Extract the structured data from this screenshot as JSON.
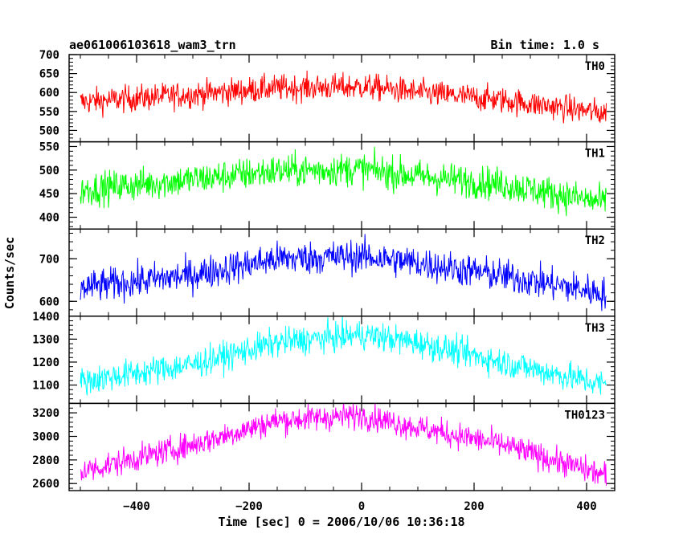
{
  "chart_data": {
    "type": "line",
    "title": "ae061006103618_wam3_trn",
    "subtitle": "Bin time: 1.0 s",
    "xlabel": "Time [sec] 0 = 2006/10/06 10:36:18",
    "ylabel": "Counts/sec",
    "xlim": [
      -520,
      450
    ],
    "xticks": [
      -400,
      -200,
      0,
      200,
      400
    ],
    "x_range": [
      -500,
      435
    ],
    "bin_time": 1.0,
    "panels": [
      {
        "name": "TH0",
        "color": "#ff0000",
        "ylim": [
          470,
          700
        ],
        "yticks": [
          500,
          550,
          600,
          650,
          700
        ],
        "trend": [
          [
            -500,
            575
          ],
          [
            -300,
            595
          ],
          [
            -150,
            612
          ],
          [
            0,
            615
          ],
          [
            30,
            612
          ],
          [
            100,
            600
          ],
          [
            250,
            580
          ],
          [
            435,
            545
          ]
        ],
        "noise": 25
      },
      {
        "name": "TH1",
        "color": "#00ff00",
        "ylim": [
          375,
          560
        ],
        "yticks": [
          400,
          450,
          500,
          550
        ],
        "trend": [
          [
            -500,
            458
          ],
          [
            -300,
            480
          ],
          [
            -150,
            498
          ],
          [
            0,
            502
          ],
          [
            100,
            487
          ],
          [
            250,
            470
          ],
          [
            435,
            430
          ]
        ],
        "noise": 25
      },
      {
        "name": "TH2",
        "color": "#0000ff",
        "ylim": [
          565,
          770
        ],
        "yticks": [
          600,
          700
        ],
        "trend": [
          [
            -500,
            632
          ],
          [
            -300,
            662
          ],
          [
            -150,
            700
          ],
          [
            0,
            706
          ],
          [
            100,
            690
          ],
          [
            250,
            660
          ],
          [
            435,
            618
          ]
        ],
        "noise": 28
      },
      {
        "name": "TH3",
        "color": "#00ffff",
        "ylim": [
          1020,
          1400
        ],
        "yticks": [
          1100,
          1200,
          1300,
          1400
        ],
        "trend": [
          [
            -500,
            1115
          ],
          [
            -300,
            1190
          ],
          [
            -150,
            1285
          ],
          [
            0,
            1320
          ],
          [
            100,
            1285
          ],
          [
            250,
            1200
          ],
          [
            435,
            1100
          ]
        ],
        "noise": 45
      },
      {
        "name": "TH0123",
        "color": "#ff00ff",
        "ylim": [
          2540,
          3280
        ],
        "yticks": [
          2600,
          2800,
          3000,
          3200
        ],
        "trend": [
          [
            -500,
            2700
          ],
          [
            -300,
            2930
          ],
          [
            -150,
            3135
          ],
          [
            0,
            3180
          ],
          [
            100,
            3075
          ],
          [
            250,
            2930
          ],
          [
            435,
            2665
          ]
        ],
        "noise": 80
      }
    ]
  }
}
